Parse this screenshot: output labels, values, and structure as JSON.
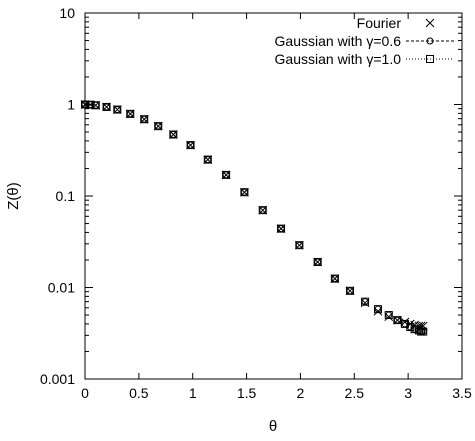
{
  "chart_data": {
    "type": "scatter",
    "xlabel": "θ",
    "ylabel": "Z(θ)",
    "xlim": [
      0,
      3.5
    ],
    "ylim": [
      0.001,
      10
    ],
    "yscale": "log",
    "grid": false,
    "legend_position": "top-right",
    "xticks": [
      "0",
      "0.5",
      "1",
      "1.5",
      "2",
      "2.5",
      "3",
      "3.5"
    ],
    "yticks": [
      "0.001",
      "0.01",
      "0.1",
      "1",
      "10"
    ],
    "series": [
      {
        "name": "Fourier",
        "marker": "cross",
        "line": "none",
        "x": [
          0,
          0.05,
          0.1,
          0.2,
          0.3,
          0.42,
          0.55,
          0.68,
          0.82,
          0.98,
          1.14,
          1.31,
          1.48,
          1.65,
          1.82,
          1.99,
          2.16,
          2.32,
          2.46,
          2.6,
          2.72,
          2.82,
          2.9,
          2.97,
          3.02,
          3.06,
          3.1,
          3.12,
          3.14
        ],
        "y": [
          1.0,
          0.995,
          0.98,
          0.94,
          0.88,
          0.79,
          0.69,
          0.58,
          0.47,
          0.36,
          0.25,
          0.17,
          0.11,
          0.07,
          0.044,
          0.029,
          0.019,
          0.0125,
          0.0092,
          0.0068,
          0.0055,
          0.0048,
          0.0044,
          0.0042,
          0.004,
          0.0039,
          0.0038,
          0.0038,
          0.0038
        ]
      },
      {
        "name": "Gaussian with γ=0.6",
        "marker": "circle",
        "line": "dashed",
        "x": [
          0,
          0.05,
          0.1,
          0.2,
          0.3,
          0.42,
          0.55,
          0.68,
          0.82,
          0.98,
          1.14,
          1.31,
          1.48,
          1.65,
          1.82,
          1.99,
          2.16,
          2.32,
          2.46,
          2.6,
          2.72,
          2.82,
          2.9,
          2.97,
          3.02,
          3.06,
          3.1,
          3.12,
          3.14
        ],
        "y": [
          1.0,
          0.995,
          0.98,
          0.94,
          0.88,
          0.79,
          0.69,
          0.58,
          0.47,
          0.36,
          0.25,
          0.17,
          0.11,
          0.07,
          0.044,
          0.029,
          0.019,
          0.0125,
          0.0092,
          0.007,
          0.0058,
          0.005,
          0.0044,
          0.004,
          0.0037,
          0.0035,
          0.0034,
          0.0033,
          0.0033
        ]
      },
      {
        "name": "Gaussian with γ=1.0",
        "marker": "square",
        "line": "dotted",
        "x": [
          0,
          0.05,
          0.1,
          0.2,
          0.3,
          0.42,
          0.55,
          0.68,
          0.82,
          0.98,
          1.14,
          1.31,
          1.48,
          1.65,
          1.82,
          1.99,
          2.16,
          2.32,
          2.46,
          2.6,
          2.72,
          2.82,
          2.9,
          2.97,
          3.02,
          3.06,
          3.1,
          3.12,
          3.14
        ],
        "y": [
          1.0,
          0.995,
          0.98,
          0.94,
          0.88,
          0.79,
          0.69,
          0.58,
          0.47,
          0.36,
          0.25,
          0.17,
          0.11,
          0.07,
          0.044,
          0.029,
          0.019,
          0.0125,
          0.0092,
          0.007,
          0.0058,
          0.005,
          0.0044,
          0.004,
          0.0037,
          0.0035,
          0.0034,
          0.0033,
          0.0033
        ]
      }
    ]
  }
}
